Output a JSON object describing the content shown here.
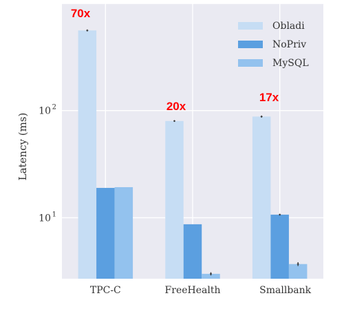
{
  "chart_data": {
    "type": "bar",
    "title": "",
    "xlabel": "",
    "ylabel": "Latency (ms)",
    "y_scale": "log",
    "ylim": [
      2.7,
      1000
    ],
    "y_ticks": [
      {
        "value": 10,
        "base": "10",
        "exp": "1"
      },
      {
        "value": 100,
        "base": "10",
        "exp": "2"
      }
    ],
    "grid": true,
    "legend_position": "top-right",
    "categories": [
      "TPC-C",
      "FreeHealth",
      "Smallbank"
    ],
    "series": [
      {
        "name": "Obladi",
        "color": "#c6ddf4",
        "values": [
          560,
          80,
          88
        ],
        "errors": [
          12,
          1.5,
          2
        ]
      },
      {
        "name": "NoPriv",
        "color": "#5b9fe0",
        "values": [
          19,
          8.7,
          10.7
        ],
        "errors": [
          0,
          0,
          0.2
        ]
      },
      {
        "name": "MySQL",
        "color": "#93c2ee",
        "values": [
          19.3,
          3.0,
          3.7
        ],
        "errors": [
          0,
          0.1,
          0.15
        ]
      }
    ],
    "annotations": [
      {
        "text": "70x",
        "category": "TPC-C",
        "color": "#ff0000"
      },
      {
        "text": "20x",
        "category": "FreeHealth",
        "color": "#ff0000"
      },
      {
        "text": "17x",
        "category": "Smallbank",
        "color": "#ff0000"
      }
    ]
  }
}
